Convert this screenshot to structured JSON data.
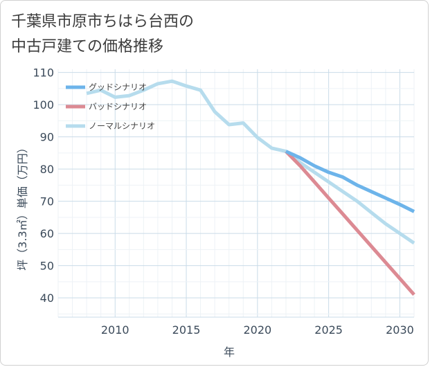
{
  "title": "千葉県市原市ちはら台西の\n中古戸建ての価格推移",
  "chart_data": {
    "type": "line",
    "xlabel": "年",
    "ylabel": "坪（3.3㎡）単価（万円）",
    "xlim": [
      2006,
      2031
    ],
    "ylim": [
      34,
      111
    ],
    "xticks": [
      2010,
      2015,
      2020,
      2025,
      2030
    ],
    "yticks": [
      40,
      50,
      60,
      70,
      80,
      90,
      100,
      110
    ],
    "grid": true,
    "legend_position": "top-left",
    "series": [
      {
        "name": "グッドシナリオ",
        "color": "#6db4ea",
        "x": [
          2022,
          2023,
          2024,
          2025,
          2026,
          2027,
          2028,
          2029,
          2030,
          2031
        ],
        "y": [
          85.5,
          83.5,
          81.0,
          79.0,
          77.5,
          75.0,
          73.0,
          71.0,
          69.0,
          66.8
        ]
      },
      {
        "name": "バッドシナリオ",
        "color": "#dc8a93",
        "x": [
          2022,
          2023,
          2024,
          2025,
          2026,
          2027,
          2028,
          2029,
          2030,
          2031
        ],
        "y": [
          85.5,
          81.0,
          76.0,
          71.0,
          66.0,
          61.0,
          56.0,
          51.0,
          46.0,
          41.0
        ]
      },
      {
        "name": "ノーマルシナリオ",
        "color": "#b6dced",
        "x": [
          2008,
          2009,
          2010,
          2011,
          2012,
          2013,
          2014,
          2015,
          2016,
          2017,
          2018,
          2019,
          2020,
          2021,
          2022,
          2023,
          2024,
          2025,
          2026,
          2027,
          2028,
          2029,
          2030,
          2031
        ],
        "y": [
          103.5,
          104.5,
          102.3,
          102.8,
          104.5,
          106.5,
          107.3,
          105.8,
          104.5,
          97.8,
          93.8,
          94.3,
          89.8,
          86.5,
          85.5,
          82.0,
          79.0,
          76.0,
          73.0,
          70.0,
          66.5,
          63.0,
          60.0,
          57.0
        ]
      }
    ]
  }
}
